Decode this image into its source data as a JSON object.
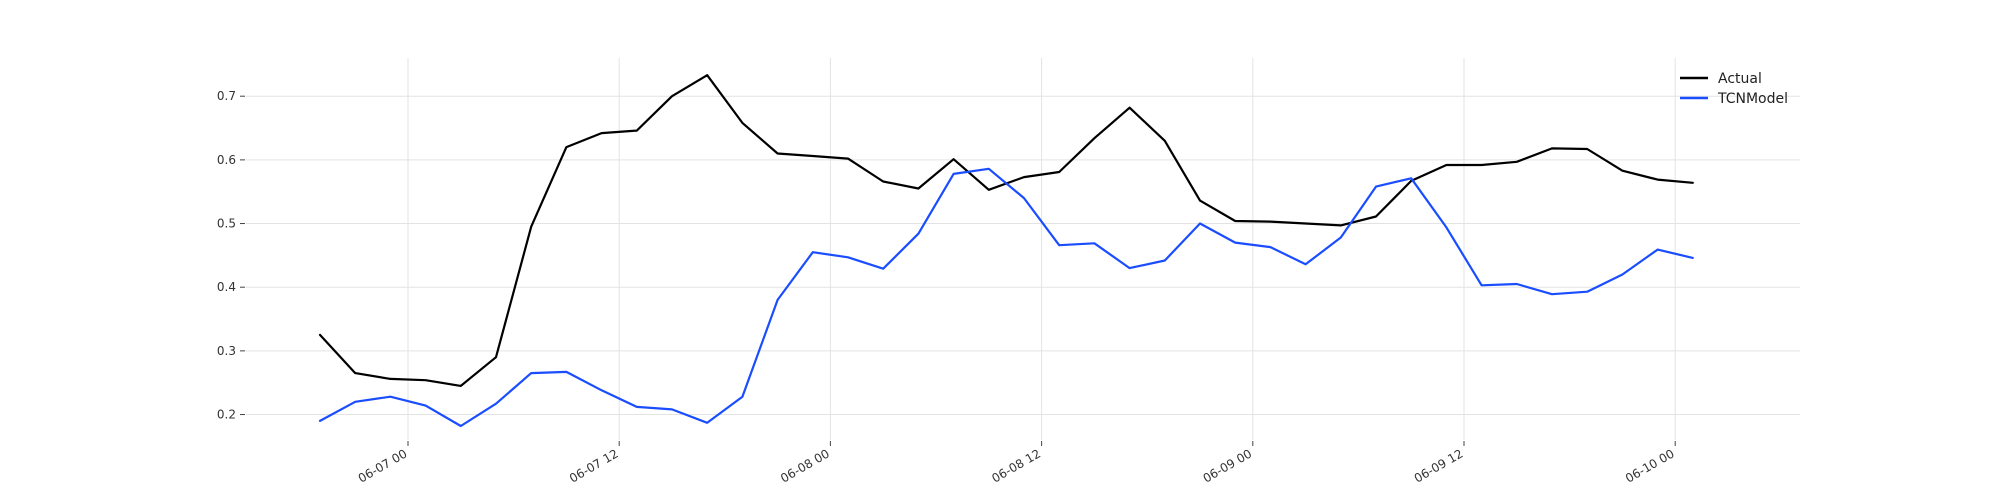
{
  "chart_data": {
    "type": "line",
    "xlabel": "",
    "ylabel": "",
    "ylim": [
      0.16,
      0.76
    ],
    "yticks": [
      "0.2",
      "0.3",
      "0.4",
      "0.5",
      "0.6",
      "0.7"
    ],
    "xticks": [
      "06-07 00",
      "06-07 12",
      "06-08 00",
      "06-08 12",
      "06-09 00",
      "06-09 12",
      "06-10 00"
    ],
    "x_start": "2023-06-06 19:00",
    "x_step_hours": 2,
    "grid": true,
    "legend_position": "top-right",
    "series": [
      {
        "name": "Actual",
        "color": "#000000",
        "values": [
          0.325,
          0.265,
          0.256,
          0.254,
          0.245,
          0.29,
          0.495,
          0.62,
          0.642,
          0.646,
          0.7,
          0.733,
          0.658,
          0.61,
          0.606,
          0.602,
          0.566,
          0.555,
          0.601,
          0.553,
          0.573,
          0.581,
          0.634,
          0.682,
          0.63,
          0.536,
          0.504,
          0.503,
          0.5,
          0.497,
          0.511,
          0.567,
          0.592,
          0.592,
          0.597,
          0.618,
          0.617,
          0.583,
          0.569,
          0.564
        ]
      },
      {
        "name": "TCNModel",
        "color": "#1a4dff",
        "values": [
          0.19,
          0.22,
          0.228,
          0.214,
          0.182,
          0.217,
          0.265,
          0.267,
          0.238,
          0.212,
          0.208,
          0.187,
          0.228,
          0.38,
          0.455,
          0.447,
          0.429,
          0.484,
          0.578,
          0.586,
          0.54,
          0.466,
          0.469,
          0.43,
          0.442,
          0.5,
          0.47,
          0.463,
          0.436,
          0.478,
          0.558,
          0.571,
          0.494,
          0.403,
          0.405,
          0.389,
          0.393,
          0.42,
          0.459,
          0.446
        ]
      }
    ]
  }
}
